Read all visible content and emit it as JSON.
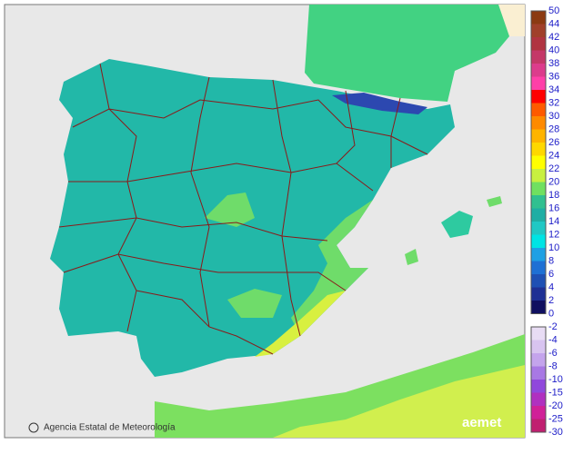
{
  "credit": "Agencia Estatal de Meteorología",
  "logo": "aemet",
  "legend": {
    "positive": {
      "labels": [
        "50",
        "44",
        "42",
        "40",
        "38",
        "36",
        "34",
        "32",
        "30",
        "28",
        "26",
        "24",
        "22",
        "20",
        "18",
        "16",
        "14",
        "12",
        "10",
        "8",
        "6",
        "4",
        "2",
        "0"
      ],
      "colors": [
        "#8b3a12",
        "#a0402a",
        "#b03440",
        "#c43868",
        "#dc3c8c",
        "#ff40a8",
        "#ff0000",
        "#ff5a00",
        "#ff8a00",
        "#ffb400",
        "#ffd800",
        "#ffff00",
        "#c8f040",
        "#70e060",
        "#30c090",
        "#1eaea4",
        "#20c8c4",
        "#00e4e4",
        "#1ea0e4",
        "#1e70d4",
        "#1e50b4",
        "#1e3094",
        "#101060"
      ]
    },
    "negative": {
      "labels": [
        "-2",
        "-4",
        "-6",
        "-8",
        "-10",
        "-15",
        "-20",
        "-25",
        "-30"
      ],
      "colors": [
        "#e8dcf4",
        "#d8c4f0",
        "#c4a4ec",
        "#a878e4",
        "#9048dc",
        "#b030c0",
        "#d02098",
        "#c02070"
      ]
    }
  }
}
